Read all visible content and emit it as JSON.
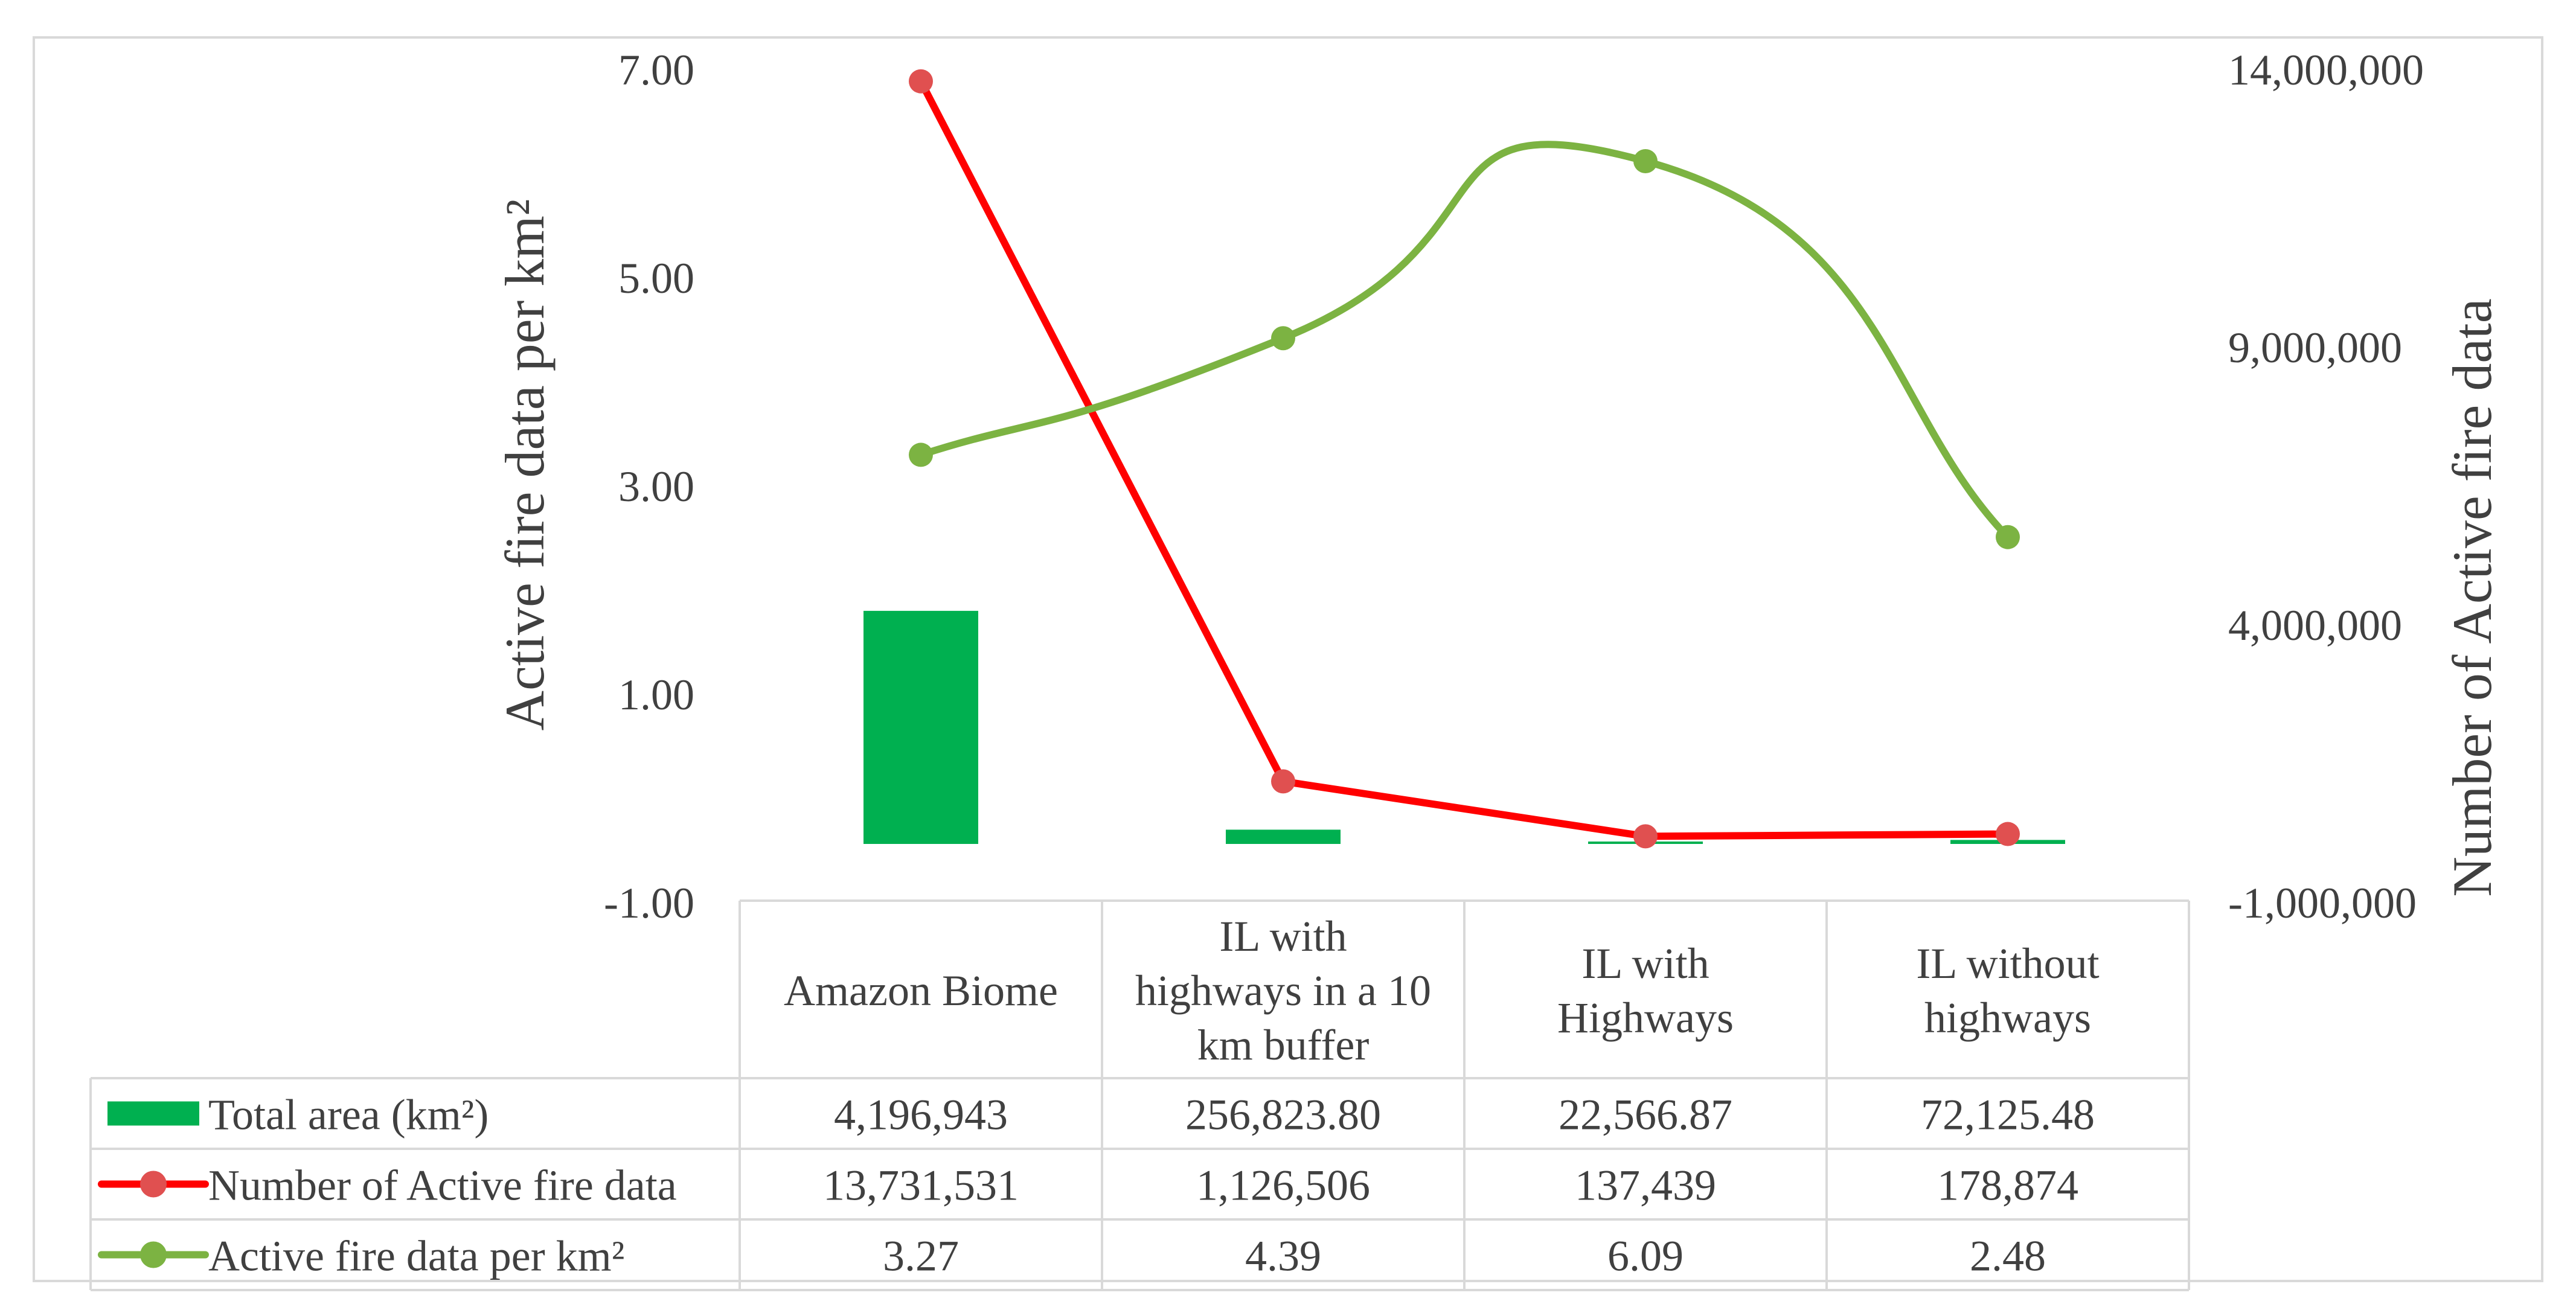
{
  "chart_data": {
    "type": "bar",
    "categories": [
      "Amazon Biome",
      "IL with highways in a 10 km buffer",
      "IL with Highways",
      "IL without highways"
    ],
    "category_lines": [
      [
        "Amazon Biome"
      ],
      [
        "IL with",
        "highways in a 10",
        "km buffer"
      ],
      [
        "IL with",
        "Highways"
      ],
      [
        "IL without",
        "highways"
      ]
    ],
    "series": [
      {
        "name": "Total area (km²)",
        "kind": "bar",
        "axis": "right",
        "color": "#00B050",
        "values": [
          4196943,
          256823.8,
          22566.87,
          72125.48
        ],
        "labels": [
          "4,196,943",
          "256,823.80",
          "22,566.87",
          "72,125.48"
        ]
      },
      {
        "name": "Number of Active fire data",
        "kind": "line",
        "axis": "right",
        "color": "#FF0000",
        "marker_color": "#E05050",
        "values": [
          13731531,
          1126506,
          137439,
          178874
        ],
        "labels": [
          "13,731,531",
          "1,126,506",
          "137,439",
          "178,874"
        ]
      },
      {
        "name": "Active fire data per km²",
        "kind": "smooth-line",
        "axis": "left",
        "color": "#7CB342",
        "values": [
          3.27,
          4.39,
          6.09,
          2.48
        ],
        "labels": [
          "3.27",
          "4.39",
          "6.09",
          "2.48"
        ]
      }
    ],
    "y_left": {
      "label": "Active fire data per km²",
      "range": [
        -1,
        7
      ],
      "ticks": [
        7,
        5,
        3,
        1,
        -1
      ],
      "tick_labels": [
        "7.00",
        "5.00",
        "3.00",
        "1.00",
        "-1.00"
      ]
    },
    "y_right": {
      "label": "Number of Active fire data",
      "range": [
        -1000000,
        14000000
      ],
      "ticks": [
        14000000,
        9000000,
        4000000,
        -1000000
      ],
      "tick_labels": [
        "14,000,000",
        "9,000,000",
        "4,000,000",
        "-1,000,000"
      ]
    },
    "legend_placement": "data-table",
    "grid": false
  }
}
